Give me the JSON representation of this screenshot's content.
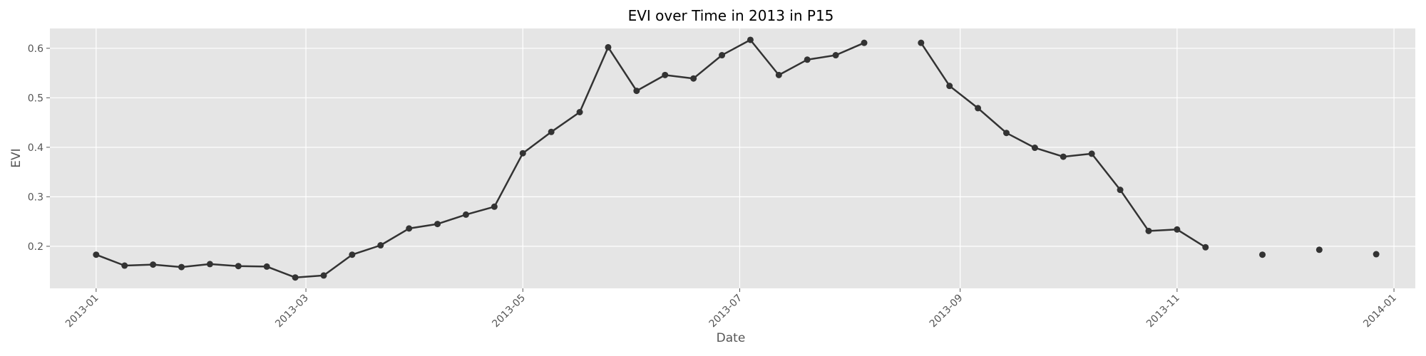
{
  "chart_data": {
    "type": "line",
    "title": "EVI over Time in 2013 in P15",
    "xlabel": "Date",
    "ylabel": "EVI",
    "xlim": [
      "2012-12-19",
      "2014-01-07"
    ],
    "ylim": [
      0.115,
      0.64
    ],
    "grid": true,
    "x_ticks": [
      "2013-01",
      "2013-03",
      "2013-05",
      "2013-07",
      "2013-09",
      "2013-11",
      "2014-01"
    ],
    "y_ticks": [
      "0.2",
      "0.3",
      "0.4",
      "0.5",
      "0.6"
    ],
    "line_color": "#333333",
    "background_color": "#e5e5e5",
    "series": [
      {
        "x": [
          "2013-01-01",
          "2013-01-09",
          "2013-01-17",
          "2013-01-25",
          "2013-02-02",
          "2013-02-10",
          "2013-02-18",
          "2013-02-26",
          "2013-03-06",
          "2013-03-14",
          "2013-03-22",
          "2013-03-30",
          "2013-04-07",
          "2013-04-15",
          "2013-04-23",
          "2013-05-01",
          "2013-05-09",
          "2013-05-17",
          "2013-05-25",
          "2013-06-02",
          "2013-06-10",
          "2013-06-18",
          "2013-06-26",
          "2013-07-04",
          "2013-07-12",
          "2013-07-20",
          "2013-07-28",
          "2013-08-05",
          "2013-08-13",
          "2013-08-21",
          "2013-08-29",
          "2013-09-06",
          "2013-09-14",
          "2013-09-22",
          "2013-09-30",
          "2013-10-08",
          "2013-10-16",
          "2013-10-24",
          "2013-11-01",
          "2013-11-09",
          "2013-11-17",
          "2013-11-25",
          "2013-12-03",
          "2013-12-11",
          "2013-12-19",
          "2013-12-27"
        ],
        "values": [
          0.183,
          0.161,
          0.163,
          0.158,
          0.164,
          0.16,
          0.159,
          0.137,
          0.141,
          0.183,
          0.202,
          0.236,
          0.245,
          0.264,
          0.28,
          0.388,
          0.431,
          0.471,
          0.602,
          0.514,
          0.546,
          0.539,
          0.586,
          0.617,
          0.546,
          0.577,
          0.586,
          0.611,
          null,
          0.611,
          0.524,
          0.479,
          0.429,
          0.399,
          0.381,
          0.387,
          0.314,
          0.231,
          0.234,
          0.198,
          null,
          0.183,
          null,
          0.193,
          null,
          0.184
        ]
      }
    ]
  }
}
